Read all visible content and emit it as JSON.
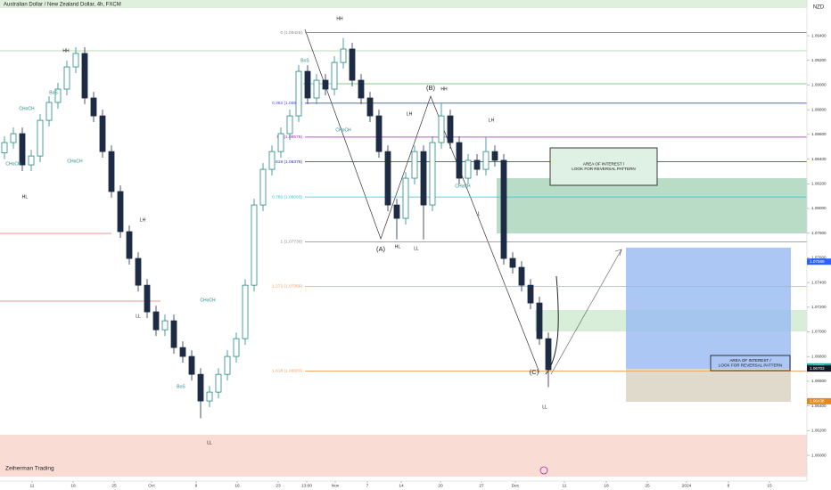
{
  "chart_data": {
    "type": "candlestick",
    "title": "Australian Dollar / New Zealand Dollar, 4h, FXCM",
    "currency": "NZD",
    "watermark": "Zeiherman Trading",
    "x": [
      0,
      1,
      2,
      3,
      4,
      5,
      6,
      7,
      8,
      9,
      10,
      11,
      12,
      13,
      14,
      15,
      16,
      17,
      18,
      19,
      20,
      21,
      22,
      23,
      24,
      25,
      26,
      27,
      28,
      29,
      30,
      31,
      32,
      33,
      34,
      35,
      36,
      37,
      38,
      39,
      40,
      41,
      42,
      43,
      44,
      45,
      46,
      47,
      48,
      49,
      50,
      51,
      52,
      53,
      54,
      55,
      56,
      57,
      58,
      59,
      60,
      61
    ],
    "open": [
      1.0845,
      1.08534,
      1.08606,
      1.08353,
      1.08425,
      1.08714,
      1.08859,
      1.08967,
      1.09147,
      1.09256,
      1.08895,
      1.0875,
      1.08461,
      1.08137,
      1.07812,
      1.07595,
      1.07378,
      1.07162,
      1.07017,
      1.0709,
      1.06873,
      1.06801,
      1.06656,
      1.0644,
      1.06512,
      1.06656,
      1.06801,
      1.06945,
      1.07378,
      1.08028,
      1.08317,
      1.08461,
      1.08606,
      1.0875,
      1.09111,
      1.08895,
      1.09039,
      1.08967,
      1.09183,
      1.09292,
      1.09039,
      1.08895,
      1.0875,
      1.08461,
      1.08028,
      1.0792,
      1.08245,
      1.08461,
      1.08028,
      1.08534,
      1.0875,
      1.08534,
      1.08245,
      1.0839,
      1.08317,
      1.08461,
      1.0839,
      1.07595,
      1.07523,
      1.07378,
      1.07234,
      1.06945
    ],
    "high": [
      1.08584,
      1.08656,
      1.08656,
      1.08475,
      1.08764,
      1.08909,
      1.09017,
      1.09197,
      1.09306,
      1.09306,
      1.08945,
      1.088,
      1.08511,
      1.08187,
      1.07862,
      1.07645,
      1.07428,
      1.07212,
      1.0714,
      1.0714,
      1.06923,
      1.06851,
      1.06706,
      1.06562,
      1.06706,
      1.06851,
      1.06995,
      1.07428,
      1.08078,
      1.08367,
      1.08511,
      1.08656,
      1.088,
      1.09161,
      1.09161,
      1.09089,
      1.09089,
      1.09233,
      1.0938,
      1.09342,
      1.09089,
      1.08945,
      1.088,
      1.08511,
      1.08078,
      1.08295,
      1.08511,
      1.08511,
      1.08584,
      1.0885,
      1.088,
      1.08584,
      1.0844,
      1.0844,
      1.0858,
      1.08511,
      1.0844,
      1.07645,
      1.07573,
      1.07428,
      1.07284,
      1.06995
    ],
    "low": [
      1.084,
      1.08484,
      1.08303,
      1.08303,
      1.08375,
      1.08664,
      1.08809,
      1.08917,
      1.09097,
      1.08845,
      1.087,
      1.08411,
      1.08087,
      1.07762,
      1.07545,
      1.07328,
      1.07112,
      1.06967,
      1.06967,
      1.06823,
      1.06751,
      1.06606,
      1.063,
      1.0639,
      1.06462,
      1.06606,
      1.06751,
      1.06895,
      1.07328,
      1.07978,
      1.08267,
      1.08411,
      1.08556,
      1.087,
      1.08845,
      1.08845,
      1.08917,
      1.08917,
      1.09133,
      1.08989,
      1.08845,
      1.087,
      1.08411,
      1.07978,
      1.0775,
      1.0787,
      1.08195,
      1.0775,
      1.07978,
      1.08484,
      1.08484,
      1.08195,
      1.08195,
      1.08267,
      1.08267,
      1.0834,
      1.07545,
      1.07473,
      1.07328,
      1.07184,
      1.06895,
      1.06553
    ],
    "close": [
      1.08534,
      1.08606,
      1.08353,
      1.08425,
      1.08714,
      1.08859,
      1.08967,
      1.09147,
      1.09256,
      1.08895,
      1.0875,
      1.08461,
      1.08137,
      1.07812,
      1.07595,
      1.07378,
      1.07162,
      1.07017,
      1.0709,
      1.06873,
      1.06801,
      1.06656,
      1.0644,
      1.06512,
      1.06656,
      1.06801,
      1.06945,
      1.07378,
      1.08028,
      1.08317,
      1.08461,
      1.08606,
      1.0875,
      1.09111,
      1.08895,
      1.09039,
      1.08967,
      1.09183,
      1.09292,
      1.09039,
      1.08895,
      1.0875,
      1.08461,
      1.08028,
      1.0792,
      1.08245,
      1.08461,
      1.08028,
      1.08534,
      1.0875,
      1.08534,
      1.08245,
      1.0839,
      1.08317,
      1.08461,
      1.0839,
      1.07595,
      1.07523,
      1.07378,
      1.07234,
      1.06945,
      1.06693
    ],
    "up_color": "#1f8a84",
    "down_color": "#1d2b45",
    "xlim": [
      -0.5,
      90
    ],
    "xticks": [
      {
        "value": 3.1,
        "label": "11"
      },
      {
        "value": 7.7,
        "label": "18"
      },
      {
        "value": 12.3,
        "label": "25"
      },
      {
        "value": 16.5,
        "label": "Oct"
      },
      {
        "value": 21.5,
        "label": "9"
      },
      {
        "value": 26.1,
        "label": "16"
      },
      {
        "value": 30.7,
        "label": "23"
      },
      {
        "value": 33.9,
        "label": "13:00"
      },
      {
        "value": 37.1,
        "label": "Nov"
      },
      {
        "value": 40.7,
        "label": "7"
      },
      {
        "value": 44.5,
        "label": "14"
      },
      {
        "value": 48.9,
        "label": "20"
      },
      {
        "value": 53.5,
        "label": "27"
      },
      {
        "value": 57.3,
        "label": "Dec"
      },
      {
        "value": 62.8,
        "label": "11"
      },
      {
        "value": 67.5,
        "label": "18"
      },
      {
        "value": 72.1,
        "label": "25"
      },
      {
        "value": 76.5,
        "label": "2024"
      },
      {
        "value": 81.2,
        "label": "8"
      },
      {
        "value": 85.8,
        "label": "15"
      }
    ],
    "ylim": [
      1.05791,
      1.09689
    ],
    "yticks": [
      {
        "value": 1.094,
        "label": "1.09400"
      },
      {
        "value": 1.092,
        "label": "1.09200"
      },
      {
        "value": 1.09,
        "label": "1.09000"
      },
      {
        "value": 1.088,
        "label": "1.08800"
      },
      {
        "value": 1.086,
        "label": "1.08600"
      },
      {
        "value": 1.084,
        "label": "1.08400"
      },
      {
        "value": 1.082,
        "label": "1.08200"
      },
      {
        "value": 1.08,
        "label": "1.08000"
      },
      {
        "value": 1.078,
        "label": "1.07800"
      },
      {
        "value": 1.076,
        "label": "1.07600"
      },
      {
        "value": 1.074,
        "label": "1.07400"
      },
      {
        "value": 1.072,
        "label": "1.07200"
      },
      {
        "value": 1.07,
        "label": "1.07000"
      },
      {
        "value": 1.068,
        "label": "1.06800"
      },
      {
        "value": 1.066,
        "label": "1.06600"
      },
      {
        "value": 1.064,
        "label": "1.06400"
      },
      {
        "value": 1.062,
        "label": "1.06200"
      },
      {
        "value": 1.06,
        "label": "1.06000"
      }
    ],
    "fib_levels": [
      {
        "value": 1.09425,
        "label": "0 (1.09425)"
      },
      {
        "value": 1.08853,
        "label": "0.382 (1.08853)"
      },
      {
        "value": 1.08578,
        "label": "0.5 (1.08578)"
      },
      {
        "value": 1.08378,
        "label": "0.618 (1.08378)"
      },
      {
        "value": 1.08093,
        "label": "0.786 (1.08093)"
      },
      {
        "value": 1.0773,
        "label": "1 (1.07730)"
      },
      {
        "value": 1.07369,
        "label": "1.272 (1.07369)"
      },
      {
        "value": 1.06683,
        "label": "1.618 (1.06683)"
      }
    ],
    "fib_colors": [
      "#888888",
      "#3f51d8",
      "#9c27b0",
      "#283593",
      "#26c6da",
      "#888888",
      "#f5a05a",
      "#f5a05a"
    ],
    "price_markers": [
      {
        "value": 1.07569,
        "label": "1.07569",
        "color": "#2962ff"
      },
      {
        "value": 1.0672,
        "label": "1.06720",
        "color": "#26a69a"
      },
      {
        "value": 1.06703,
        "label": "1.06703",
        "color": "#131722"
      },
      {
        "value": 1.06438,
        "label": "1.06438",
        "color": "#e08a1e"
      }
    ],
    "annotations": [
      "HH",
      "HH",
      "HH",
      "LH",
      "LH",
      "LH",
      "HL",
      "HL",
      "LL",
      "LL",
      "LL",
      "LL",
      "L",
      "CHoCH",
      "CHoCH",
      "CHoCH",
      "CHoCH",
      "CHoCH",
      "CHoCH",
      "BoS",
      "BoS",
      "BoS",
      "(A)",
      "(B)",
      "(C)"
    ],
    "area_of_interest": [
      [
        "AREA OF INTEREST /",
        "LOOK FOR REVERSAL PATTERN"
      ],
      [
        "AREA OF INTEREST /",
        "LOOK FOR REVERSAL PATTERN"
      ]
    ]
  }
}
